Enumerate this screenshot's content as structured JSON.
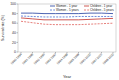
{
  "chart_data": {
    "type": "line",
    "x_label": "Year",
    "y_label": "Survival rate (%)",
    "categories": [
      "1990-1994",
      "1991-1995",
      "1992-1996",
      "1993-1997",
      "1994-1998",
      "1995-1999",
      "1996-2000",
      "1997-2001",
      "1998-2002"
    ],
    "series": [
      {
        "name": "Women - 1 year",
        "color": "#1f3c9e",
        "line_style": "solid",
        "values": [
          81,
          81,
          80,
          80,
          80,
          80,
          81,
          81,
          80
        ]
      },
      {
        "name": "Women - 5 years",
        "color": "#4a6fd1",
        "line_style": "dashed",
        "values": [
          75,
          74,
          73,
          73,
          73,
          74,
          74,
          74,
          74
        ]
      },
      {
        "name": "Children - 1 year",
        "color": "#c0302a",
        "line_style": "solid",
        "values": [
          71,
          69,
          67,
          67,
          67,
          67,
          68,
          69,
          70
        ]
      },
      {
        "name": "Children - 5 years",
        "color": "#e0605a",
        "line_style": "dashed",
        "values": [
          64,
          61,
          58,
          57,
          57,
          57,
          58,
          59,
          60
        ]
      }
    ],
    "ylim": [
      0,
      100
    ],
    "yticks": [
      0,
      20,
      40,
      60,
      80,
      100
    ],
    "legend": "upper right",
    "grid": false
  }
}
